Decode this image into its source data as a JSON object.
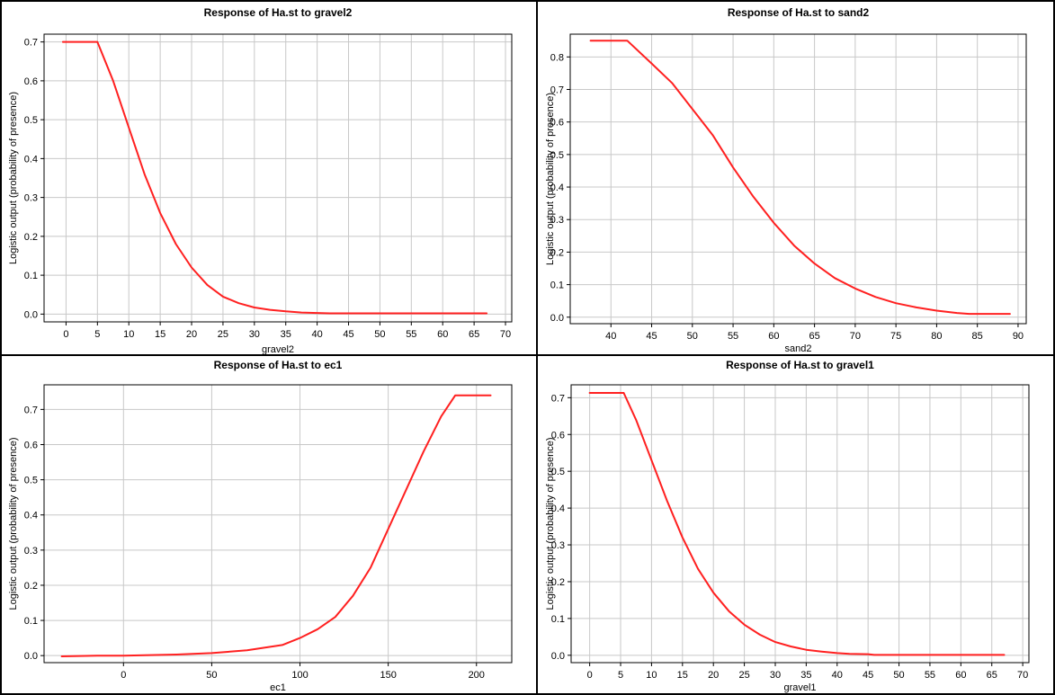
{
  "colors": {
    "curve": "#ff2020",
    "grid": "#c8c8c8",
    "axis": "#000000",
    "background": "#ffffff"
  },
  "chart_data": [
    {
      "type": "line",
      "title": "Response of Ha.st to gravel2",
      "xlabel": "gravel2",
      "ylabel": "Logistic output (probability of presence)",
      "xlim": [
        -3.5,
        71
      ],
      "ylim": [
        -0.02,
        0.72
      ],
      "xticks": [
        0,
        5,
        10,
        15,
        20,
        25,
        30,
        35,
        40,
        45,
        50,
        55,
        60,
        65,
        70
      ],
      "yticks": [
        0.0,
        0.1,
        0.2,
        0.3,
        0.4,
        0.5,
        0.6,
        0.7
      ],
      "grid": true,
      "series": [
        {
          "x": [
            -0.5,
            5,
            7.5,
            10,
            12.5,
            15,
            17.5,
            20,
            22.5,
            25,
            27.5,
            30,
            32.5,
            35,
            37.5,
            40,
            42,
            50,
            60,
            67
          ],
          "y": [
            0.7,
            0.7,
            0.6,
            0.48,
            0.36,
            0.26,
            0.18,
            0.12,
            0.075,
            0.045,
            0.028,
            0.017,
            0.011,
            0.007,
            0.004,
            0.003,
            0.002,
            0.002,
            0.002,
            0.002
          ]
        }
      ]
    },
    {
      "type": "line",
      "title": "Response of Ha.st to sand2",
      "xlabel": "sand2",
      "ylabel": "Logistic output (probability of presence)",
      "xlim": [
        35,
        91
      ],
      "ylim": [
        -0.02,
        0.87
      ],
      "xticks": [
        40,
        45,
        50,
        55,
        60,
        65,
        70,
        75,
        80,
        85,
        90
      ],
      "yticks": [
        0.0,
        0.1,
        0.2,
        0.3,
        0.4,
        0.5,
        0.6,
        0.7,
        0.8
      ],
      "grid": true,
      "series": [
        {
          "x": [
            37.5,
            42,
            45,
            47.5,
            50,
            52.5,
            55,
            57.5,
            60,
            62.5,
            65,
            67.5,
            70,
            72.5,
            75,
            77.5,
            80,
            82.5,
            84,
            89
          ],
          "y": [
            0.85,
            0.85,
            0.78,
            0.72,
            0.64,
            0.56,
            0.46,
            0.37,
            0.29,
            0.22,
            0.165,
            0.12,
            0.088,
            0.062,
            0.043,
            0.03,
            0.02,
            0.013,
            0.01,
            0.01
          ]
        }
      ]
    },
    {
      "type": "line",
      "title": "Response of Ha.st to ec1",
      "xlabel": "ec1",
      "ylabel": "Logistic output (probability of presence)",
      "xlim": [
        -45,
        220
      ],
      "ylim": [
        -0.02,
        0.77
      ],
      "xticks": [
        0,
        50,
        100,
        150,
        200
      ],
      "yticks": [
        0.0,
        0.1,
        0.2,
        0.3,
        0.4,
        0.5,
        0.6,
        0.7
      ],
      "grid": true,
      "series": [
        {
          "x": [
            -35,
            -15,
            0,
            30,
            50,
            70,
            90,
            100,
            110,
            120,
            130,
            140,
            150,
            160,
            170,
            180,
            188,
            208
          ],
          "y": [
            -0.002,
            0.0,
            0.0,
            0.003,
            0.007,
            0.015,
            0.03,
            0.05,
            0.075,
            0.11,
            0.17,
            0.25,
            0.36,
            0.47,
            0.58,
            0.68,
            0.74,
            0.74
          ]
        }
      ]
    },
    {
      "type": "line",
      "title": "Response of Ha.st to gravel1",
      "xlabel": "gravel1",
      "ylabel": "Logistic output (probability of presence)",
      "xlim": [
        -3,
        71
      ],
      "ylim": [
        -0.02,
        0.735
      ],
      "xticks": [
        0,
        5,
        10,
        15,
        20,
        25,
        30,
        35,
        40,
        45,
        50,
        55,
        60,
        65,
        70
      ],
      "yticks": [
        0.0,
        0.1,
        0.2,
        0.3,
        0.4,
        0.5,
        0.6,
        0.7
      ],
      "grid": true,
      "series": [
        {
          "x": [
            0,
            5.5,
            7.5,
            10,
            12.5,
            15,
            17.5,
            20,
            22.5,
            25,
            27.5,
            30,
            32.5,
            35,
            37.5,
            40,
            42,
            45,
            46,
            55,
            67
          ],
          "y": [
            0.713,
            0.713,
            0.64,
            0.53,
            0.42,
            0.32,
            0.235,
            0.17,
            0.12,
            0.083,
            0.056,
            0.036,
            0.024,
            0.015,
            0.01,
            0.006,
            0.004,
            0.003,
            0.001,
            0.001,
            0.001
          ]
        }
      ]
    }
  ]
}
